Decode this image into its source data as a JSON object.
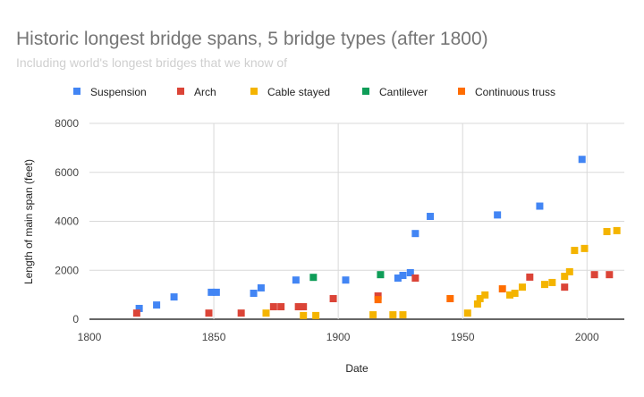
{
  "chart_data": {
    "type": "scatter",
    "title": "Historic longest bridge spans, 5 bridge types (after 1800)",
    "subtitle": "Including world's longest bridges that we know of",
    "xlabel": "Date",
    "ylabel": "Length of main span (feet)",
    "xlim": [
      1800,
      2015
    ],
    "ylim": [
      0,
      8000
    ],
    "xticks": [
      "1800",
      "1850",
      "1900",
      "1950",
      "2000"
    ],
    "yticks": [
      "0",
      "2000",
      "4000",
      "6000",
      "8000"
    ],
    "grid": true,
    "legend_position": "top",
    "series": [
      {
        "name": "Suspension",
        "color": "#4285f4",
        "points": [
          [
            1820,
            440
          ],
          [
            1827,
            580
          ],
          [
            1834,
            910
          ],
          [
            1849,
            1100
          ],
          [
            1851,
            1100
          ],
          [
            1866,
            1060
          ],
          [
            1869,
            1280
          ],
          [
            1883,
            1600
          ],
          [
            1903,
            1600
          ],
          [
            1924,
            1680
          ],
          [
            1926,
            1790
          ],
          [
            1929,
            1900
          ],
          [
            1931,
            3500
          ],
          [
            1937,
            4200
          ],
          [
            1964,
            4260
          ],
          [
            1981,
            4620
          ],
          [
            1998,
            6530
          ]
        ]
      },
      {
        "name": "Arch",
        "color": "#db4437",
        "points": [
          [
            1819,
            250
          ],
          [
            1848,
            250
          ],
          [
            1861,
            250
          ],
          [
            1874,
            510
          ],
          [
            1877,
            510
          ],
          [
            1884,
            510
          ],
          [
            1886,
            510
          ],
          [
            1898,
            840
          ],
          [
            1916,
            950
          ],
          [
            1931,
            1680
          ],
          [
            1977,
            1720
          ],
          [
            1991,
            1310
          ],
          [
            2003,
            1820
          ],
          [
            2009,
            1820
          ]
        ]
      },
      {
        "name": "Cable stayed",
        "color": "#f4b400",
        "points": [
          [
            1871,
            250
          ],
          [
            1886,
            150
          ],
          [
            1891,
            150
          ],
          [
            1914,
            180
          ],
          [
            1922,
            180
          ],
          [
            1926,
            180
          ],
          [
            1952,
            250
          ],
          [
            1956,
            620
          ],
          [
            1957,
            840
          ],
          [
            1959,
            990
          ],
          [
            1969,
            990
          ],
          [
            1971,
            1060
          ],
          [
            1974,
            1310
          ],
          [
            1983,
            1420
          ],
          [
            1986,
            1500
          ],
          [
            1991,
            1750
          ],
          [
            1993,
            1940
          ],
          [
            1995,
            2810
          ],
          [
            1999,
            2890
          ],
          [
            2008,
            3580
          ],
          [
            2012,
            3620
          ]
        ]
      },
      {
        "name": "Cantilever",
        "color": "#0f9d58",
        "points": [
          [
            1890,
            1710
          ],
          [
            1917,
            1820
          ]
        ]
      },
      {
        "name": "Continuous truss",
        "color": "#ff6d00",
        "points": [
          [
            1916,
            800
          ],
          [
            1945,
            840
          ],
          [
            1966,
            1240
          ]
        ]
      }
    ]
  }
}
